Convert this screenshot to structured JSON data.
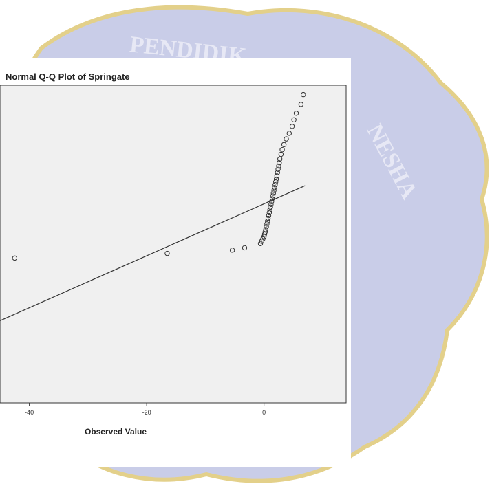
{
  "watermark": {
    "text_top": "PENDIDIK",
    "text_right": "NESHA",
    "color": "#c9cde8",
    "border_color": "#e3d08a"
  },
  "chart_data": {
    "type": "scatter",
    "title": "Normal Q-Q Plot of Springate",
    "xlabel": "Observed Value",
    "ylabel": "",
    "x_ticks": [
      -40,
      -20,
      0
    ],
    "x_tick_labels": [
      "-40",
      "-20",
      "0"
    ],
    "xlim": [
      -45,
      14
    ],
    "ylim": [
      -3.2,
      3.6
    ],
    "grid": false,
    "reference_line": {
      "x": [
        -45,
        7
      ],
      "y": [
        -1.44,
        1.45
      ]
    },
    "points": [
      {
        "x": -42.5,
        "y": -0.1
      },
      {
        "x": -16.5,
        "y": 0.0
      },
      {
        "x": -5.4,
        "y": 0.07
      },
      {
        "x": -3.3,
        "y": 0.12
      },
      {
        "x": -0.6,
        "y": 0.21
      },
      {
        "x": -0.4,
        "y": 0.26
      },
      {
        "x": -0.2,
        "y": 0.31
      },
      {
        "x": 0.0,
        "y": 0.36
      },
      {
        "x": 0.1,
        "y": 0.41
      },
      {
        "x": 0.2,
        "y": 0.46
      },
      {
        "x": 0.3,
        "y": 0.51
      },
      {
        "x": 0.4,
        "y": 0.57
      },
      {
        "x": 0.5,
        "y": 0.63
      },
      {
        "x": 0.6,
        "y": 0.69
      },
      {
        "x": 0.7,
        "y": 0.75
      },
      {
        "x": 0.8,
        "y": 0.81
      },
      {
        "x": 0.9,
        "y": 0.87
      },
      {
        "x": 1.0,
        "y": 0.93
      },
      {
        "x": 1.1,
        "y": 0.99
      },
      {
        "x": 1.2,
        "y": 1.05
      },
      {
        "x": 1.3,
        "y": 1.11
      },
      {
        "x": 1.4,
        "y": 1.17
      },
      {
        "x": 1.5,
        "y": 1.23
      },
      {
        "x": 1.6,
        "y": 1.29
      },
      {
        "x": 1.7,
        "y": 1.35
      },
      {
        "x": 1.8,
        "y": 1.41
      },
      {
        "x": 1.9,
        "y": 1.47
      },
      {
        "x": 2.0,
        "y": 1.53
      },
      {
        "x": 2.1,
        "y": 1.59
      },
      {
        "x": 2.2,
        "y": 1.66
      },
      {
        "x": 2.3,
        "y": 1.73
      },
      {
        "x": 2.4,
        "y": 1.8
      },
      {
        "x": 2.5,
        "y": 1.87
      },
      {
        "x": 2.6,
        "y": 1.94
      },
      {
        "x": 2.7,
        "y": 2.02
      },
      {
        "x": 2.9,
        "y": 2.12
      },
      {
        "x": 3.1,
        "y": 2.22
      },
      {
        "x": 3.4,
        "y": 2.33
      },
      {
        "x": 3.8,
        "y": 2.45
      },
      {
        "x": 4.3,
        "y": 2.57
      },
      {
        "x": 4.8,
        "y": 2.72
      },
      {
        "x": 5.1,
        "y": 2.86
      },
      {
        "x": 5.5,
        "y": 3.0
      },
      {
        "x": 6.3,
        "y": 3.19
      },
      {
        "x": 6.7,
        "y": 3.4
      }
    ]
  }
}
